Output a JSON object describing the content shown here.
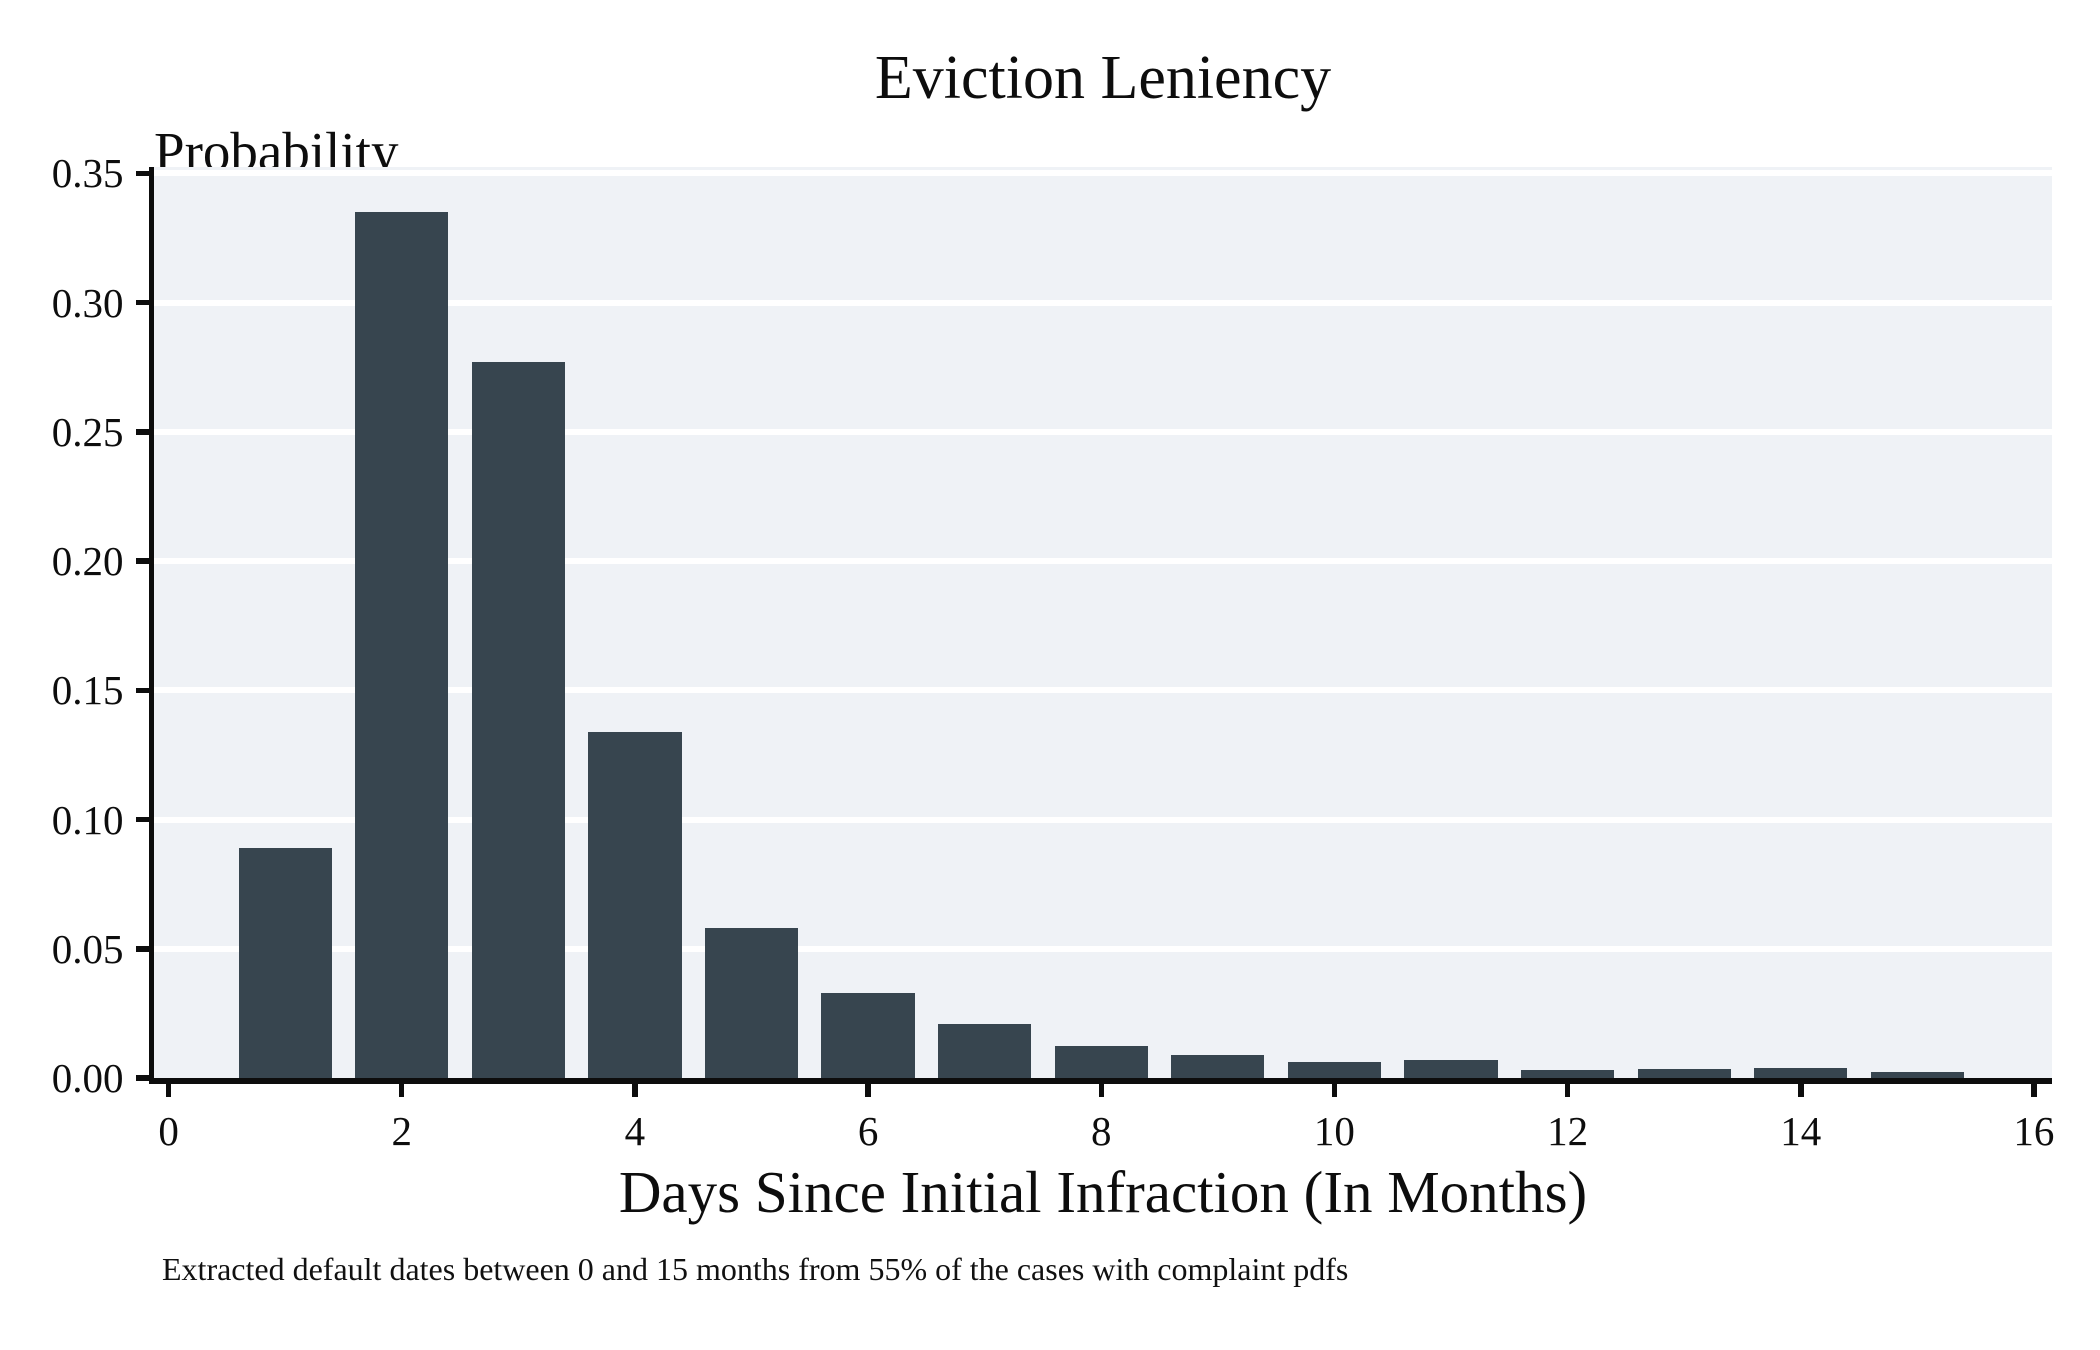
{
  "chart": {
    "title": "Eviction Leniency",
    "y_axis_title": "Probability",
    "x_axis_title": "Days Since Initial Infraction (In Months)",
    "footnote": "Extracted default dates between 0 and 15 months from 55% of the cases with complaint pdfs"
  },
  "chart_data": {
    "type": "bar",
    "title": "Eviction Leniency",
    "xlabel": "Days Since Initial Infraction (In Months)",
    "ylabel": "Probability",
    "footnote": "Extracted default dates between 0 and 15 months from 55% of the cases with complaint pdfs",
    "categories": [
      1,
      2,
      3,
      4,
      5,
      6,
      7,
      8,
      9,
      10,
      11,
      12,
      13,
      14,
      15
    ],
    "values": [
      0.089,
      0.335,
      0.277,
      0.134,
      0.058,
      0.033,
      0.021,
      0.0125,
      0.009,
      0.006,
      0.007,
      0.003,
      0.0035,
      0.004,
      0.0025
    ],
    "bar_width_units": 0.8,
    "x_tick_labels": [
      "0",
      "2",
      "4",
      "6",
      "8",
      "10",
      "12",
      "14",
      "16"
    ],
    "x_tick_values": [
      0,
      2,
      4,
      6,
      8,
      10,
      12,
      14,
      16
    ],
    "y_tick_labels": [
      "0.00",
      "0.05",
      "0.10",
      "0.15",
      "0.20",
      "0.25",
      "0.30",
      "0.35"
    ],
    "y_tick_values": [
      0.0,
      0.05,
      0.1,
      0.15,
      0.2,
      0.25,
      0.3,
      0.35
    ],
    "xlim": [
      -0.125,
      16.155
    ],
    "ylim": [
      0,
      0.3525
    ],
    "grid": "horizontal gridlines only, white on light panel",
    "legend": "none",
    "colors": {
      "bar": "#37454f",
      "panel_background": "#eff2f6",
      "figure_background": "#ffffff",
      "gridline": "#ffffff",
      "text": "#0d0d0d"
    }
  }
}
